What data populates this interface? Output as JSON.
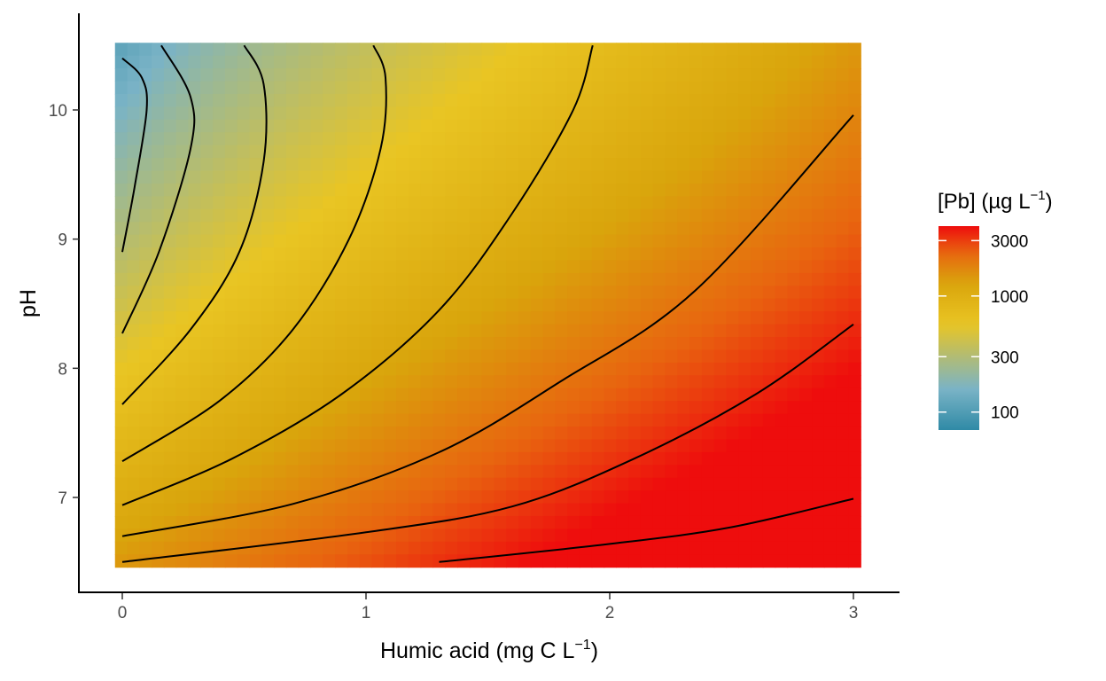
{
  "chart_data": {
    "type": "heatmap",
    "title": "",
    "xlabel": "Humic acid (mg C L",
    "xlabel_sup": "−1",
    "xlabel_end": ")",
    "ylabel": "pH",
    "xlim": [
      0,
      3
    ],
    "ylim": [
      6.5,
      10.5
    ],
    "x_ticks": [
      {
        "value": 0,
        "label": "0"
      },
      {
        "value": 1,
        "label": "1"
      },
      {
        "value": 2,
        "label": "2"
      },
      {
        "value": 3,
        "label": "3"
      }
    ],
    "y_ticks": [
      {
        "value": 7,
        "label": "7"
      },
      {
        "value": 8,
        "label": "8"
      },
      {
        "value": 9,
        "label": "9"
      },
      {
        "value": 10,
        "label": "10"
      }
    ],
    "fill_variable": "[Pb]",
    "legend": {
      "title": "[Pb] (µg L",
      "title_sup": "−1",
      "title_end": ")",
      "position": "right",
      "scale": "log",
      "range": [
        70,
        4000
      ],
      "breaks": [
        {
          "value": 100,
          "label": "100"
        },
        {
          "value": 300,
          "label": "300"
        },
        {
          "value": 1000,
          "label": "1000"
        },
        {
          "value": 3000,
          "label": "3000"
        }
      ],
      "colors": [
        "#2f8aa6",
        "#7ab3c6",
        "#e9c523",
        "#d9a50c",
        "#e8650f",
        "#ee0d0d"
      ]
    },
    "contours": [
      {
        "points": [
          [
            0.0,
            8.9
          ],
          [
            0.05,
            9.4
          ],
          [
            0.1,
            10.0
          ],
          [
            0.08,
            10.25
          ],
          [
            0.0,
            10.4
          ]
        ]
      },
      {
        "points": [
          [
            0.0,
            8.27
          ],
          [
            0.15,
            8.9
          ],
          [
            0.28,
            9.7
          ],
          [
            0.28,
            10.1
          ],
          [
            0.16,
            10.5
          ]
        ]
      },
      {
        "points": [
          [
            0.0,
            7.72
          ],
          [
            0.28,
            8.3
          ],
          [
            0.48,
            8.9
          ],
          [
            0.58,
            9.6
          ],
          [
            0.58,
            10.2
          ],
          [
            0.5,
            10.5
          ]
        ]
      },
      {
        "points": [
          [
            0.0,
            7.28
          ],
          [
            0.4,
            7.75
          ],
          [
            0.7,
            8.3
          ],
          [
            0.93,
            9.0
          ],
          [
            1.06,
            9.7
          ],
          [
            1.08,
            10.25
          ],
          [
            1.03,
            10.5
          ]
        ]
      },
      {
        "points": [
          [
            0.0,
            6.94
          ],
          [
            0.45,
            7.3
          ],
          [
            0.9,
            7.8
          ],
          [
            1.3,
            8.45
          ],
          [
            1.6,
            9.2
          ],
          [
            1.85,
            10.0
          ],
          [
            1.93,
            10.5
          ]
        ]
      },
      {
        "points": [
          [
            0.0,
            6.7
          ],
          [
            0.7,
            6.95
          ],
          [
            1.3,
            7.35
          ],
          [
            1.8,
            7.9
          ],
          [
            2.35,
            8.6
          ],
          [
            3.0,
            9.96
          ]
        ]
      },
      {
        "points": [
          [
            0.0,
            6.5
          ],
          [
            1.0,
            6.73
          ],
          [
            1.6,
            6.93
          ],
          [
            2.1,
            7.3
          ],
          [
            2.6,
            7.8
          ],
          [
            3.0,
            8.34
          ]
        ]
      },
      {
        "points": [
          [
            1.3,
            6.5
          ],
          [
            2.0,
            6.64
          ],
          [
            2.5,
            6.77
          ],
          [
            3.0,
            6.99
          ]
        ]
      }
    ]
  }
}
